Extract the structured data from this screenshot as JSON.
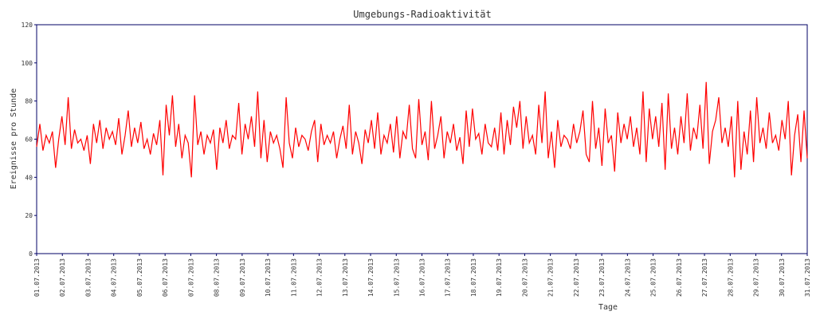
{
  "chart_data": {
    "type": "line",
    "title": "Umgebungs-Radioaktivität",
    "xlabel": "Tage",
    "ylabel": "Ereignisse pro Stunde",
    "color": "#ff0000",
    "ylim": [
      0,
      120
    ],
    "yticks": [
      0,
      20,
      40,
      60,
      80,
      100,
      120
    ],
    "xticks": [
      "01.07.2013",
      "02.07.2013",
      "03.07.2013",
      "04.07.2013",
      "05.07.2013",
      "06.07.2013",
      "07.07.2013",
      "08.07.2013",
      "09.07.2013",
      "10.07.2013",
      "11.07.2013",
      "12.07.2013",
      "13.07.2013",
      "14.07.2013",
      "15.07.2013",
      "16.07.2013",
      "17.07.2013",
      "18.07.2013",
      "19.07.2013",
      "20.07.2013",
      "21.07.2013",
      "22.07.2013",
      "23.07.2013",
      "24.07.2013",
      "25.07.2013",
      "26.07.2013",
      "27.07.2013",
      "28.07.2013",
      "29.07.2013",
      "30.07.2013",
      "31.07.2013"
    ],
    "values": [
      56,
      68,
      54,
      62,
      58,
      64,
      45,
      60,
      72,
      57,
      82,
      55,
      65,
      58,
      60,
      54,
      62,
      47,
      68,
      58,
      70,
      55,
      66,
      60,
      64,
      57,
      71,
      52,
      62,
      75,
      56,
      66,
      58,
      69,
      55,
      60,
      52,
      63,
      57,
      70,
      41,
      78,
      62,
      83,
      56,
      68,
      50,
      62,
      58,
      40,
      83,
      57,
      64,
      52,
      62,
      58,
      65,
      44,
      66,
      58,
      70,
      55,
      62,
      60,
      79,
      52,
      68,
      60,
      72,
      56,
      85,
      50,
      70,
      48,
      64,
      58,
      62,
      55,
      45,
      82,
      58,
      50,
      66,
      56,
      62,
      60,
      54,
      64,
      70,
      48,
      68,
      57,
      62,
      58,
      64,
      50,
      60,
      67,
      55,
      78,
      52,
      64,
      58,
      47,
      65,
      58,
      70,
      55,
      74,
      52,
      62,
      58,
      68,
      53,
      72,
      50,
      64,
      60,
      78,
      55,
      50,
      81,
      57,
      64,
      49,
      80,
      55,
      62,
      72,
      50,
      64,
      58,
      68,
      54,
      61,
      47,
      75,
      56,
      76,
      60,
      63,
      52,
      68,
      58,
      56,
      66,
      54,
      74,
      52,
      70,
      57,
      77,
      66,
      80,
      55,
      72,
      58,
      62,
      52,
      78,
      58,
      85,
      50,
      64,
      45,
      70,
      56,
      62,
      60,
      55,
      68,
      58,
      64,
      75,
      52,
      48,
      80,
      55,
      66,
      46,
      76,
      58,
      62,
      43,
      74,
      58,
      68,
      60,
      72,
      56,
      66,
      52,
      85,
      48,
      76,
      60,
      72,
      56,
      79,
      44,
      84,
      55,
      66,
      52,
      72,
      58,
      84,
      54,
      66,
      60,
      78,
      55,
      90,
      47,
      64,
      70,
      82,
      58,
      66,
      56,
      72,
      40,
      80,
      44,
      64,
      52,
      75,
      48,
      82,
      58,
      66,
      55,
      74,
      58,
      62,
      54,
      70,
      60,
      80,
      41,
      62,
      73,
      48,
      75,
      50
    ]
  }
}
